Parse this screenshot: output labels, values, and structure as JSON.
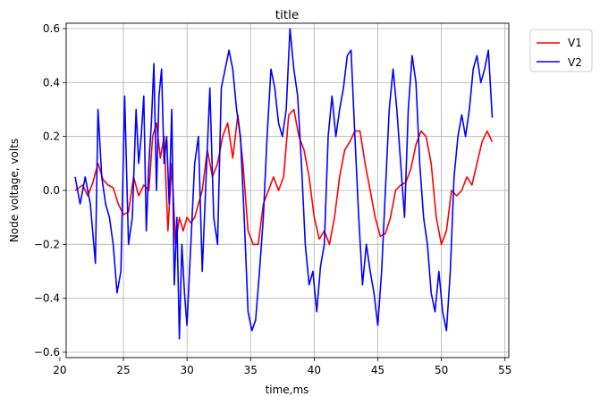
{
  "chart_data": {
    "type": "line",
    "title": "title",
    "xlabel": "time,ms",
    "ylabel": "Node voltage, volts",
    "xlim": [
      20.5,
      55.3
    ],
    "ylim": [
      -0.62,
      0.62
    ],
    "xticks": [
      20,
      25,
      30,
      35,
      40,
      45,
      50,
      55
    ],
    "yticks": [
      -0.6,
      -0.4,
      -0.2,
      0.0,
      0.2,
      0.4,
      0.6
    ],
    "xtick_labels": [
      "20",
      "25",
      "30",
      "35",
      "40",
      "45",
      "50",
      "55"
    ],
    "ytick_labels": [
      "−0.6",
      "−0.4",
      "−0.2",
      "0.0",
      "0.2",
      "0.4",
      "0.6"
    ],
    "grid": true,
    "legend_position": "outside-top-right",
    "series": [
      {
        "name": "V1",
        "color": "#ff0000",
        "x": [
          21.2,
          21.8,
          22.2,
          22.6,
          23.0,
          23.4,
          23.8,
          24.2,
          24.6,
          25.0,
          25.4,
          25.8,
          26.2,
          26.6,
          27.0,
          27.3,
          27.6,
          27.9,
          28.2,
          28.5,
          28.8,
          29.1,
          29.4,
          29.7,
          30.0,
          30.3,
          30.6,
          30.9,
          31.2,
          31.6,
          32.0,
          32.4,
          32.8,
          33.2,
          33.6,
          34.0,
          34.4,
          34.8,
          35.2,
          35.6,
          36.0,
          36.4,
          36.8,
          37.2,
          37.6,
          38.0,
          38.4,
          38.8,
          39.2,
          39.6,
          40.0,
          40.4,
          40.8,
          41.2,
          41.6,
          42.0,
          42.4,
          42.8,
          43.2,
          43.6,
          44.0,
          44.4,
          44.8,
          45.2,
          45.6,
          46.0,
          46.4,
          46.8,
          47.2,
          47.6,
          48.0,
          48.4,
          48.8,
          49.2,
          49.6,
          50.0,
          50.4,
          50.8,
          51.2,
          51.6,
          52.0,
          52.4,
          52.8,
          53.2,
          53.6,
          54.0
        ],
        "y": [
          0.0,
          0.02,
          -0.02,
          0.03,
          0.1,
          0.04,
          0.02,
          0.01,
          -0.05,
          -0.09,
          -0.08,
          0.05,
          -0.02,
          0.02,
          0.0,
          0.2,
          0.25,
          0.12,
          0.2,
          -0.15,
          0.1,
          -0.2,
          -0.1,
          -0.15,
          -0.1,
          -0.12,
          -0.1,
          -0.05,
          0.0,
          0.15,
          0.05,
          0.1,
          0.2,
          0.25,
          0.12,
          0.28,
          0.1,
          -0.15,
          -0.2,
          -0.2,
          -0.05,
          0.0,
          0.05,
          0.0,
          0.05,
          0.28,
          0.3,
          0.2,
          0.15,
          0.05,
          -0.1,
          -0.18,
          -0.15,
          -0.2,
          -0.1,
          0.05,
          0.15,
          0.18,
          0.22,
          0.22,
          0.1,
          0.0,
          -0.1,
          -0.17,
          -0.16,
          -0.1,
          0.0,
          0.02,
          0.03,
          0.08,
          0.17,
          0.22,
          0.2,
          0.1,
          -0.1,
          -0.2,
          -0.15,
          0.0,
          -0.02,
          0.0,
          0.05,
          0.02,
          0.1,
          0.18,
          0.22,
          0.18
        ]
      },
      {
        "name": "V2",
        "color": "#0000ff",
        "x": [
          21.2,
          21.6,
          22.0,
          22.4,
          22.8,
          23.0,
          23.3,
          23.6,
          23.9,
          24.2,
          24.5,
          24.8,
          25.1,
          25.4,
          25.7,
          26.0,
          26.2,
          26.4,
          26.6,
          26.8,
          27.0,
          27.2,
          27.4,
          27.6,
          27.8,
          28.0,
          28.2,
          28.4,
          28.6,
          28.8,
          29.0,
          29.2,
          29.4,
          29.6,
          29.8,
          30.0,
          30.3,
          30.6,
          30.9,
          31.2,
          31.5,
          31.8,
          32.1,
          32.4,
          32.7,
          33.0,
          33.3,
          33.6,
          33.9,
          34.2,
          34.5,
          34.8,
          35.1,
          35.4,
          35.7,
          36.0,
          36.3,
          36.6,
          36.9,
          37.2,
          37.5,
          37.8,
          38.1,
          38.4,
          38.7,
          39.0,
          39.3,
          39.6,
          39.9,
          40.2,
          40.5,
          40.8,
          41.1,
          41.4,
          41.7,
          42.0,
          42.3,
          42.6,
          42.9,
          43.2,
          43.5,
          43.8,
          44.1,
          44.4,
          44.7,
          45.0,
          45.3,
          45.6,
          45.9,
          46.2,
          46.5,
          46.8,
          47.1,
          47.4,
          47.7,
          48.0,
          48.3,
          48.6,
          48.9,
          49.2,
          49.5,
          49.8,
          50.1,
          50.4,
          50.7,
          51.0,
          51.3,
          51.6,
          51.9,
          52.2,
          52.5,
          52.8,
          53.1,
          53.4,
          53.7,
          54.0
        ],
        "y": [
          0.05,
          -0.05,
          0.05,
          -0.05,
          -0.27,
          0.3,
          0.05,
          -0.05,
          -0.1,
          -0.2,
          -0.38,
          -0.3,
          0.35,
          -0.2,
          -0.1,
          0.3,
          0.1,
          0.2,
          0.35,
          -0.15,
          0.1,
          0.25,
          0.47,
          0.0,
          0.35,
          0.45,
          0.1,
          0.2,
          -0.05,
          0.3,
          -0.35,
          -0.1,
          -0.55,
          -0.2,
          -0.38,
          -0.5,
          -0.2,
          0.1,
          0.2,
          -0.3,
          0.05,
          0.38,
          -0.1,
          -0.2,
          0.38,
          0.45,
          0.52,
          0.45,
          0.3,
          0.2,
          -0.1,
          -0.45,
          -0.52,
          -0.48,
          -0.3,
          -0.1,
          0.2,
          0.45,
          0.38,
          0.25,
          0.2,
          0.3,
          0.6,
          0.45,
          0.35,
          0.1,
          -0.2,
          -0.35,
          -0.3,
          -0.45,
          -0.28,
          -0.2,
          0.2,
          0.35,
          0.2,
          0.3,
          0.38,
          0.5,
          0.52,
          0.2,
          -0.1,
          -0.35,
          -0.2,
          -0.3,
          -0.38,
          -0.5,
          -0.3,
          0.0,
          0.3,
          0.45,
          0.3,
          0.1,
          -0.1,
          0.3,
          0.5,
          0.4,
          0.1,
          -0.1,
          -0.2,
          -0.38,
          -0.45,
          -0.3,
          -0.45,
          -0.52,
          -0.3,
          0.05,
          0.2,
          0.28,
          0.2,
          0.3,
          0.45,
          0.5,
          0.4,
          0.45,
          0.52,
          0.27
        ]
      }
    ]
  }
}
